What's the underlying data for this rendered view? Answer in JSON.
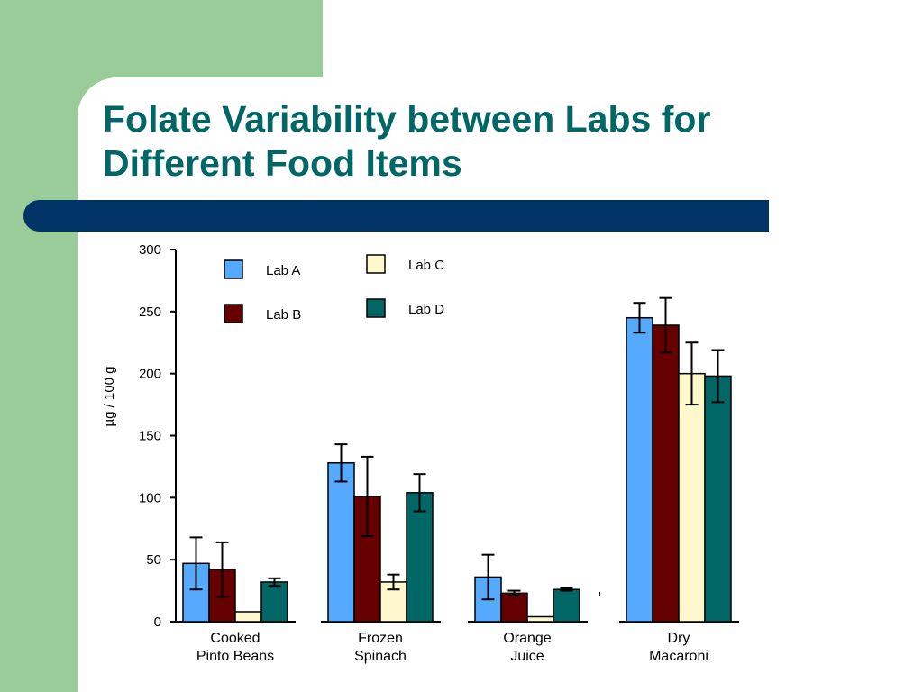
{
  "slide": {
    "title_line1": "Folate Variability between Labs for",
    "title_line2": "Different Food Items"
  },
  "colors": {
    "green_block": "#99cc99",
    "title_text": "#006666",
    "title_bar": "#003366"
  },
  "chart_data": {
    "type": "bar",
    "title": "",
    "xlabel": "",
    "ylabel": "µg / 100 g",
    "ylim": [
      0,
      300
    ],
    "yticks": [
      0,
      50,
      100,
      150,
      200,
      250,
      300
    ],
    "categories": [
      [
        "Cooked",
        "Pinto Beans"
      ],
      [
        "Frozen",
        "Spinach"
      ],
      [
        "Orange",
        "Juice"
      ],
      [
        "Dry",
        "Macaroni"
      ]
    ],
    "series": [
      {
        "name": "Lab A",
        "color": "#55aaff",
        "values": [
          47,
          128,
          36,
          245
        ],
        "errors": [
          21,
          15,
          18,
          12
        ]
      },
      {
        "name": "Lab B",
        "color": "#660000",
        "values": [
          42,
          101,
          23,
          239
        ],
        "errors": [
          22,
          32,
          2,
          22
        ]
      },
      {
        "name": "Lab C",
        "color": "#fff8cc",
        "values": [
          8,
          32,
          4,
          200
        ],
        "errors": [
          0,
          6,
          0,
          25
        ]
      },
      {
        "name": "Lab D",
        "color": "#006666",
        "values": [
          32,
          104,
          26,
          198
        ],
        "errors": [
          3,
          15,
          1,
          21
        ]
      }
    ],
    "legend_position": "top-left",
    "grid": false
  }
}
